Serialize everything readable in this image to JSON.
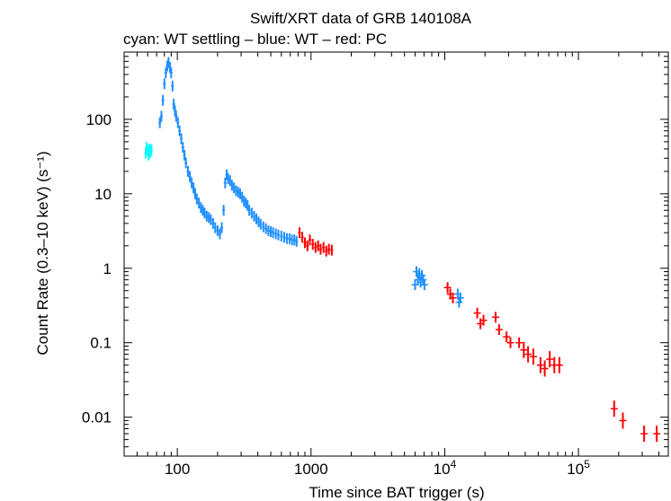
{
  "chart_data": {
    "type": "scatter",
    "title": "Swift/XRT data of GRB 140108A",
    "subtitle": "cyan: WT settling – blue: WT – red: PC",
    "xlabel": "Time since BAT trigger (s)",
    "ylabel": "Count Rate (0.3–10 keV) (s⁻¹)",
    "xscale": "log",
    "yscale": "log",
    "xlim": [
      40,
      470000
    ],
    "ylim": [
      0.003,
      800
    ],
    "x_ticks": [
      {
        "value": 100,
        "label": "100"
      },
      {
        "value": 1000,
        "label": "1000"
      },
      {
        "value": 10000,
        "base": "10",
        "exp": "4"
      },
      {
        "value": 100000,
        "base": "10",
        "exp": "5"
      }
    ],
    "y_ticks": [
      {
        "value": 100,
        "label": "100"
      },
      {
        "value": 10,
        "label": "10"
      },
      {
        "value": 1,
        "label": "1"
      },
      {
        "value": 0.1,
        "label": "0.1"
      },
      {
        "value": 0.01,
        "label": "0.01"
      }
    ],
    "series": [
      {
        "name": "WT settling",
        "color": "#00ffff",
        "points": [
          [
            58,
            35
          ],
          [
            59,
            42
          ],
          [
            60,
            38
          ],
          [
            61,
            33
          ],
          [
            62,
            40
          ],
          [
            63,
            36
          ],
          [
            64,
            39
          ]
        ]
      },
      {
        "name": "WT",
        "color": "#1f8fff",
        "points": [
          [
            74,
            90
          ],
          [
            76,
            110
          ],
          [
            78,
            180
          ],
          [
            80,
            300
          ],
          [
            82,
            420
          ],
          [
            84,
            520
          ],
          [
            86,
            580
          ],
          [
            88,
            500
          ],
          [
            90,
            420
          ],
          [
            92,
            280
          ],
          [
            94,
            160
          ],
          [
            96,
            130
          ],
          [
            98,
            110
          ],
          [
            101,
            90
          ],
          [
            104,
            70
          ],
          [
            107,
            55
          ],
          [
            110,
            42
          ],
          [
            113,
            33
          ],
          [
            116,
            26
          ],
          [
            120,
            20
          ],
          [
            124,
            17
          ],
          [
            128,
            14
          ],
          [
            132,
            12
          ],
          [
            136,
            10
          ],
          [
            140,
            8.5
          ],
          [
            145,
            7.5
          ],
          [
            150,
            6.5
          ],
          [
            155,
            6
          ],
          [
            160,
            5.5
          ],
          [
            166,
            5
          ],
          [
            172,
            4.8
          ],
          [
            178,
            4.5
          ],
          [
            185,
            4
          ],
          [
            192,
            3.5
          ],
          [
            200,
            3.2
          ],
          [
            208,
            2.9
          ],
          [
            215,
            3.5
          ],
          [
            222,
            6
          ],
          [
            228,
            14
          ],
          [
            234,
            18
          ],
          [
            240,
            16
          ],
          [
            248,
            15
          ],
          [
            256,
            13
          ],
          [
            265,
            12
          ],
          [
            275,
            11
          ],
          [
            285,
            10.5
          ],
          [
            295,
            10
          ],
          [
            305,
            9
          ],
          [
            315,
            8
          ],
          [
            325,
            7.5
          ],
          [
            335,
            7
          ],
          [
            345,
            6
          ],
          [
            360,
            5.5
          ],
          [
            375,
            5
          ],
          [
            390,
            4.6
          ],
          [
            405,
            4.2
          ],
          [
            420,
            3.9
          ],
          [
            440,
            3.6
          ],
          [
            460,
            3.4
          ],
          [
            480,
            3.2
          ],
          [
            500,
            3.1
          ],
          [
            520,
            3.0
          ],
          [
            545,
            2.9
          ],
          [
            570,
            2.8
          ],
          [
            600,
            2.7
          ],
          [
            630,
            2.6
          ],
          [
            660,
            2.5
          ],
          [
            690,
            2.5
          ],
          [
            720,
            2.4
          ],
          [
            750,
            2.4
          ],
          [
            780,
            2.3
          ],
          [
            6000,
            0.6
          ],
          [
            6150,
            0.9
          ],
          [
            6300,
            0.7
          ],
          [
            6450,
            0.85
          ],
          [
            6600,
            0.65
          ],
          [
            6750,
            0.8
          ],
          [
            6900,
            0.7
          ],
          [
            7050,
            0.6
          ],
          [
            12500,
            0.45
          ],
          [
            12800,
            0.35
          ],
          [
            13100,
            0.4
          ]
        ]
      },
      {
        "name": "PC",
        "color": "#ff0000",
        "points": [
          [
            820,
            3
          ],
          [
            860,
            2.6
          ],
          [
            900,
            2.2
          ],
          [
            940,
            2
          ],
          [
            980,
            2.4
          ],
          [
            1030,
            2.1
          ],
          [
            1080,
            1.9
          ],
          [
            1130,
            2
          ],
          [
            1180,
            1.8
          ],
          [
            1240,
            1.9
          ],
          [
            1300,
            1.7
          ],
          [
            1360,
            1.8
          ],
          [
            1430,
            1.75
          ],
          [
            10500,
            0.55
          ],
          [
            11000,
            0.45
          ],
          [
            11500,
            0.4
          ],
          [
            17500,
            0.25
          ],
          [
            18500,
            0.18
          ],
          [
            19500,
            0.2
          ],
          [
            24000,
            0.22
          ],
          [
            25500,
            0.15
          ],
          [
            29000,
            0.12
          ],
          [
            31000,
            0.1
          ],
          [
            36000,
            0.1
          ],
          [
            39000,
            0.08
          ],
          [
            42000,
            0.07
          ],
          [
            46000,
            0.065
          ],
          [
            52000,
            0.05
          ],
          [
            56000,
            0.045
          ],
          [
            61000,
            0.06
          ],
          [
            66000,
            0.05
          ],
          [
            72000,
            0.05
          ],
          [
            185000,
            0.013
          ],
          [
            215000,
            0.009
          ],
          [
            310000,
            0.006
          ],
          [
            385000,
            0.006
          ]
        ]
      }
    ]
  }
}
